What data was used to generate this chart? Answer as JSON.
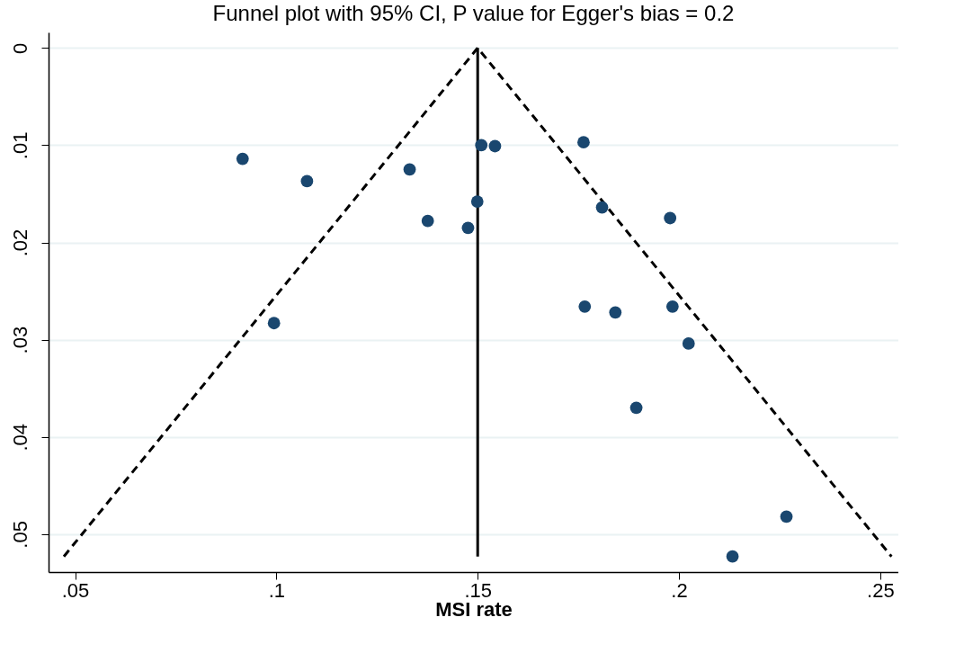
{
  "chart_data": {
    "type": "scatter",
    "title": "Funnel plot with 95% CI, P value for Egger's bias = 0.2",
    "xlabel": "MSI rate",
    "xlim": [
      0.0434,
      0.2545
    ],
    "ylim": [
      0.0539,
      -0.0016
    ],
    "xticks": [
      {
        "value": 0.05,
        "label": ".05"
      },
      {
        "value": 0.1,
        "label": ".1"
      },
      {
        "value": 0.15,
        "label": ".15"
      },
      {
        "value": 0.2,
        "label": ".2"
      },
      {
        "value": 0.25,
        "label": ".25"
      }
    ],
    "yticks": [
      0,
      {
        "value": 0.01,
        "label": ".01"
      },
      {
        "value": 0.02,
        "label": ".02"
      },
      {
        "value": 0.03,
        "label": ".03"
      },
      {
        "value": 0.04,
        "label": ".04"
      },
      {
        "value": 0.05,
        "label": ".05"
      }
    ],
    "grid": "y",
    "series": [
      {
        "type": "line",
        "line_style": "dashed",
        "marker": "none",
        "color": "#000000",
        "x": [
          0.0472,
          0.15,
          0.2528
        ],
        "values": [
          0.0523,
          0,
          0.0523
        ]
      },
      {
        "type": "line",
        "line_style": "solid",
        "marker": "none",
        "color": "#000000",
        "x": [
          0.15,
          0.15
        ],
        "values": [
          0,
          0.0523
        ]
      },
      {
        "marker": "circle",
        "color": "#1a476f",
        "x": [
          0.0916,
          0.1076,
          0.1331,
          0.1376,
          0.1476,
          0.1499,
          0.1509,
          0.1543,
          0.1763,
          0.1809,
          0.1978,
          0.0994,
          0.1766,
          0.1842,
          0.1984,
          0.2024,
          0.1894,
          0.2267,
          0.2133
        ],
        "values": [
          0.0114,
          0.0137,
          0.0125,
          0.0178,
          0.0185,
          0.0158,
          0.01,
          0.0101,
          0.0097,
          0.0164,
          0.0175,
          0.0283,
          0.0266,
          0.0272,
          0.0266,
          0.0304,
          0.037,
          0.0482,
          0.0523
        ]
      }
    ]
  }
}
